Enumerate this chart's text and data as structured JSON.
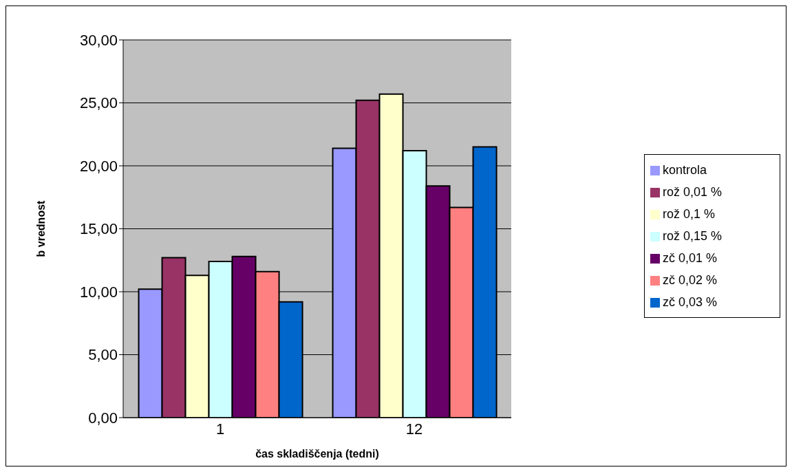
{
  "chart_data": {
    "type": "bar",
    "xlabel": "čas skladiščenja (tedni)",
    "ylabel": "b vrednost",
    "categories": [
      "1",
      "12"
    ],
    "series": [
      {
        "name": "kontrola",
        "color": "#9999ff",
        "values": [
          10.2,
          21.4
        ]
      },
      {
        "name": "rož 0,01 %",
        "color": "#993366",
        "values": [
          12.7,
          25.2
        ]
      },
      {
        "name": "rož 0,1 %",
        "color": "#ffffcc",
        "values": [
          11.3,
          25.7
        ]
      },
      {
        "name": "rož 0,15 %",
        "color": "#ccffff",
        "values": [
          12.4,
          21.2
        ]
      },
      {
        "name": "zč 0,01 %",
        "color": "#660066",
        "values": [
          12.8,
          18.4
        ]
      },
      {
        "name": "zč 0,02 %",
        "color": "#ff8080",
        "values": [
          11.6,
          16.7
        ]
      },
      {
        "name": "zč 0,03 %",
        "color": "#0066cc",
        "values": [
          9.2,
          21.5
        ]
      }
    ],
    "ylim": [
      0,
      30
    ],
    "yticks": [
      {
        "value": 0,
        "label": "0,00"
      },
      {
        "value": 5,
        "label": "5,00"
      },
      {
        "value": 10,
        "label": "10,00"
      },
      {
        "value": 15,
        "label": "15,00"
      },
      {
        "value": 20,
        "label": "20,00"
      },
      {
        "value": 25,
        "label": "25,00"
      },
      {
        "value": 30,
        "label": "30,00"
      }
    ],
    "grid": "y",
    "legend": "right"
  }
}
